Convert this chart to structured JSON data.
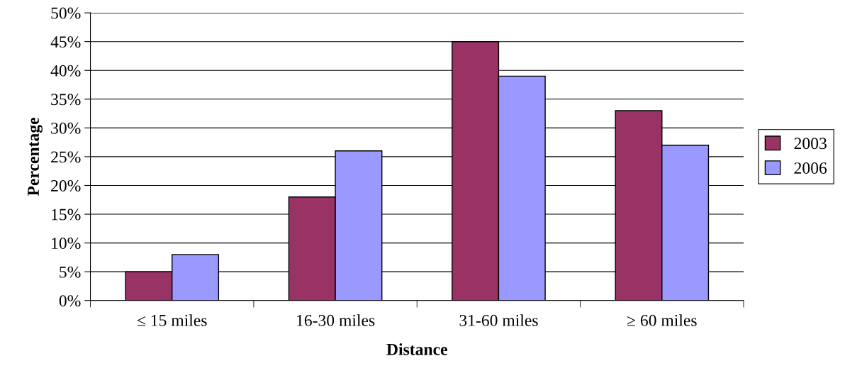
{
  "chart_data": {
    "type": "bar",
    "xlabel": "Distance",
    "ylabel": "Percentage",
    "categories": [
      "≤ 15 miles",
      "16-30 miles",
      "31-60 miles",
      "≥ 60 miles"
    ],
    "series": [
      {
        "name": "2003",
        "color": "#993366",
        "values": [
          5,
          18,
          45,
          33
        ]
      },
      {
        "name": "2006",
        "color": "#9999ff",
        "values": [
          8,
          26,
          39,
          27
        ]
      }
    ],
    "ylim": [
      0,
      50
    ],
    "yticks": [
      {
        "value": 0,
        "label": "0%"
      },
      {
        "value": 5,
        "label": "5%"
      },
      {
        "value": 10,
        "label": "10%"
      },
      {
        "value": 15,
        "label": "15%"
      },
      {
        "value": 20,
        "label": "20%"
      },
      {
        "value": 25,
        "label": "25%"
      },
      {
        "value": 30,
        "label": "30%"
      },
      {
        "value": 35,
        "label": "35%"
      },
      {
        "value": 40,
        "label": "40%"
      },
      {
        "value": 45,
        "label": "45%"
      },
      {
        "value": 50,
        "label": "50%"
      }
    ],
    "grid": "y",
    "legend": "right"
  }
}
